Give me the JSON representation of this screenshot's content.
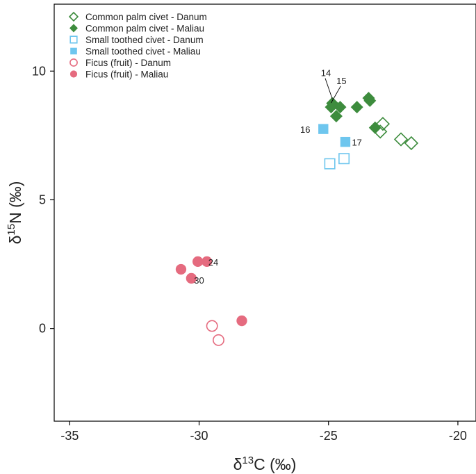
{
  "chart_data": {
    "type": "scatter",
    "xlabel": {
      "prefix": "δ",
      "sup": "13",
      "suffix": "C (‰)"
    },
    "ylabel": {
      "prefix": "δ",
      "sup": "15",
      "suffix": "N (‰)"
    },
    "xlim": [
      -35.6,
      -19.3
    ],
    "ylim": [
      -3.6,
      12.6
    ],
    "xticks": [
      -35,
      -30,
      -25,
      -20
    ],
    "xtick_labels": [
      "-35",
      "-30",
      "-25",
      "-20"
    ],
    "yticks": [
      0,
      5,
      10
    ],
    "ytick_labels": [
      "0",
      "5",
      "10"
    ],
    "grid": false,
    "legend_position": "top-left",
    "series": [
      {
        "name": "Common palm civet - Danum",
        "marker": "diamond",
        "filled": false,
        "color": "#3d8c3d",
        "points": [
          [
            -22.9,
            7.95
          ],
          [
            -23.0,
            7.65
          ],
          [
            -22.2,
            7.35
          ],
          [
            -21.8,
            7.2
          ]
        ]
      },
      {
        "name": "Common palm civet - Maliau",
        "marker": "diamond",
        "filled": true,
        "color": "#3d8c3d",
        "points": [
          [
            -24.85,
            8.75
          ],
          [
            -24.9,
            8.6
          ],
          [
            -24.55,
            8.6
          ],
          [
            -24.7,
            8.25
          ],
          [
            -23.9,
            8.6
          ],
          [
            -23.45,
            8.95
          ],
          [
            -23.4,
            8.85
          ],
          [
            -23.2,
            7.8
          ]
        ]
      },
      {
        "name": "Small toothed civet - Danum",
        "marker": "square",
        "filled": false,
        "color": "#6ec6ee",
        "points": [
          [
            -24.95,
            6.4
          ],
          [
            -24.4,
            6.6
          ]
        ]
      },
      {
        "name": "Small toothed civet - Maliau",
        "marker": "square",
        "filled": true,
        "color": "#6ec6ee",
        "points": [
          [
            -25.2,
            7.75
          ],
          [
            -24.35,
            7.25
          ]
        ]
      },
      {
        "name": "Ficus (fruit) - Danum",
        "marker": "circle",
        "filled": false,
        "color": "#e56b7f",
        "points": [
          [
            -29.5,
            0.1
          ],
          [
            -29.25,
            -0.45
          ]
        ]
      },
      {
        "name": "Ficus (fruit) - Maliau",
        "marker": "circle",
        "filled": true,
        "color": "#e56b7f",
        "points": [
          [
            -30.7,
            2.3
          ],
          [
            -30.05,
            2.6
          ],
          [
            -29.7,
            2.6
          ],
          [
            -30.3,
            1.95
          ],
          [
            -28.35,
            0.3
          ]
        ]
      }
    ],
    "annotations": [
      {
        "text": "14",
        "x": -25.1,
        "y": 9.8,
        "target": [
          -24.85,
          8.75
        ]
      },
      {
        "text": "15",
        "x": -24.5,
        "y": 9.5,
        "target": [
          -24.9,
          8.6
        ]
      },
      {
        "text": "16",
        "x": -25.9,
        "y": 7.6,
        "target": null
      },
      {
        "text": "17",
        "x": -23.9,
        "y": 7.1,
        "target": null
      },
      {
        "text": "24",
        "x": -29.45,
        "y": 2.45,
        "target": null
      },
      {
        "text": "30",
        "x": -30.0,
        "y": 1.75,
        "target": null
      }
    ]
  }
}
